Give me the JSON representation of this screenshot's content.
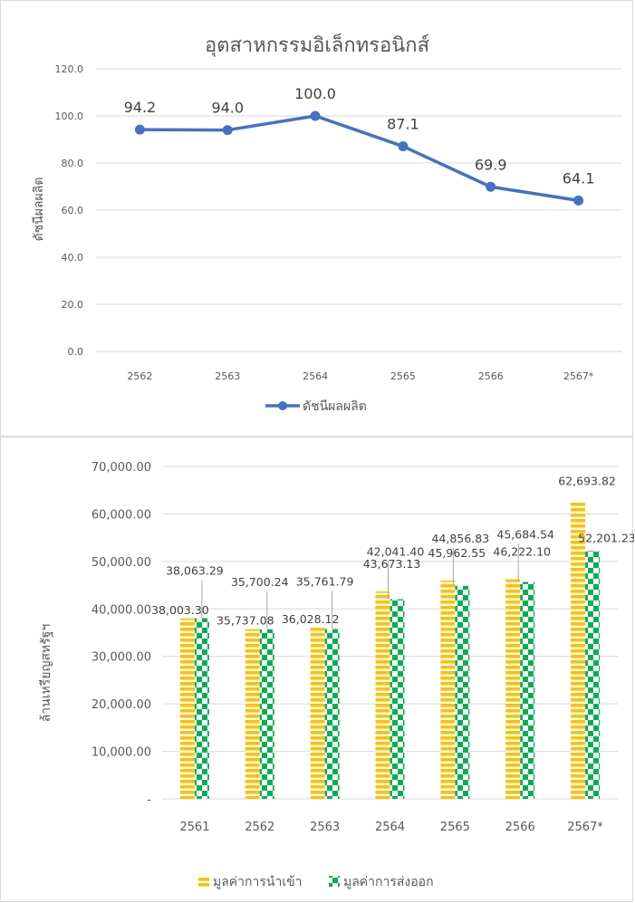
{
  "chart_data": [
    {
      "type": "line",
      "title": "อุตสาหกรรมอิเล็กทรอนิกส์",
      "ylabel": "ดัชนีผลผลิต",
      "xlabel": "",
      "categories": [
        "2562",
        "2563",
        "2564",
        "2565",
        "2566",
        "2567*"
      ],
      "series": [
        {
          "name": "ดัชนีผลผลิต",
          "values": [
            94.2,
            94.0,
            100.0,
            87.1,
            69.9,
            64.1
          ],
          "color": "#4472c4"
        }
      ],
      "data_labels": [
        "94.2",
        "94.0",
        "100.0",
        "87.1",
        "69.9",
        "64.1"
      ],
      "yticks": [
        "0.0",
        "20.0",
        "40.0",
        "60.0",
        "80.0",
        "100.0",
        "120.0"
      ],
      "ylim": [
        0,
        120
      ],
      "grid": true,
      "legend": "bottom"
    },
    {
      "type": "bar",
      "title": "",
      "ylabel": "ล้านเหรียญสหรัฐฯ",
      "xlabel": "",
      "categories": [
        "2561",
        "2562",
        "2563",
        "2564",
        "2565",
        "2566",
        "2567*"
      ],
      "series": [
        {
          "name": "มูลค่าการนำเข้า",
          "values": [
            38003.3,
            35737.08,
            36028.12,
            43673.13,
            45962.55,
            46222.1,
            62693.82
          ],
          "color": "#ffc000",
          "pattern": "horizontal-stripes"
        },
        {
          "name": "มูลค่าการส่งออก",
          "values": [
            38063.29,
            35700.24,
            35761.79,
            42041.4,
            44856.83,
            45684.54,
            52201.23
          ],
          "color": "#00b050",
          "pattern": "checkerboard"
        }
      ],
      "data_labels": {
        "import": [
          "38,003.30",
          "35,737.08",
          "36,028.12",
          "43,673.13",
          "45,962.55",
          "46,222.10",
          "62,693.82"
        ],
        "export": [
          "38,063.29",
          "35,700.24",
          "35,761.79",
          "42,041.40",
          "44,856.83",
          "45,684.54",
          "52,201.23"
        ]
      },
      "yticks": [
        "-",
        "10,000.00",
        "20,000.00",
        "30,000.00",
        "40,000.00",
        "50,000.00",
        "60,000.00",
        "70,000.00"
      ],
      "ylim": [
        0,
        70000
      ],
      "grid": true,
      "legend": "bottom"
    }
  ]
}
